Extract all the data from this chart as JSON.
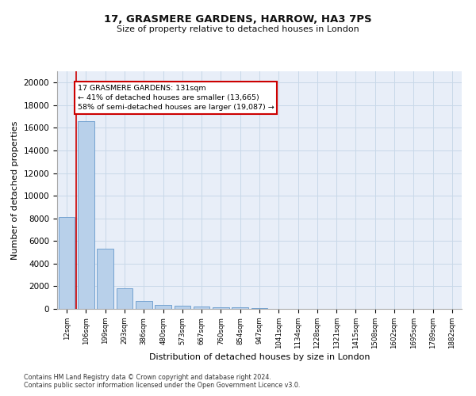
{
  "title1": "17, GRASMERE GARDENS, HARROW, HA3 7PS",
  "title2": "Size of property relative to detached houses in London",
  "xlabel": "Distribution of detached houses by size in London",
  "ylabel": "Number of detached properties",
  "bar_color": "#b8d0ea",
  "bar_edge_color": "#6699cc",
  "grid_color": "#c8d8e8",
  "background_color": "#e8eef8",
  "categories": [
    "12sqm",
    "106sqm",
    "199sqm",
    "293sqm",
    "386sqm",
    "480sqm",
    "573sqm",
    "667sqm",
    "760sqm",
    "854sqm",
    "947sqm",
    "1041sqm",
    "1134sqm",
    "1228sqm",
    "1321sqm",
    "1415sqm",
    "1508sqm",
    "1602sqm",
    "1695sqm",
    "1789sqm",
    "1882sqm"
  ],
  "values": [
    8100,
    16600,
    5300,
    1850,
    700,
    380,
    270,
    200,
    170,
    150,
    80,
    0,
    0,
    0,
    0,
    0,
    0,
    0,
    0,
    0,
    0
  ],
  "ylim": [
    0,
    21000
  ],
  "yticks": [
    0,
    2000,
    4000,
    6000,
    8000,
    10000,
    12000,
    14000,
    16000,
    18000,
    20000
  ],
  "red_line_x": 0.5,
  "annotation_text_line1": "17 GRASMERE GARDENS: 131sqm",
  "annotation_text_line2": "← 41% of detached houses are smaller (13,665)",
  "annotation_text_line3": "58% of semi-detached houses are larger (19,087) →",
  "annotation_box_color": "#ffffff",
  "annotation_box_edge_color": "#cc0000",
  "red_line_color": "#cc0000",
  "footnote1": "Contains HM Land Registry data © Crown copyright and database right 2024.",
  "footnote2": "Contains public sector information licensed under the Open Government Licence v3.0."
}
